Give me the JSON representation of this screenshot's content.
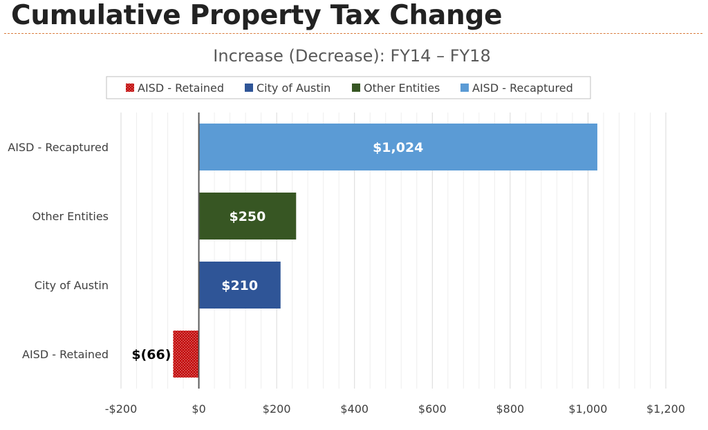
{
  "page": {
    "title": "Cumulative Property Tax Change"
  },
  "chart_data": {
    "type": "bar",
    "orientation": "horizontal",
    "title": "Increase (Decrease): FY14 – FY18",
    "xlabel": "",
    "ylabel": "",
    "categories": [
      "AISD - Recaptured",
      "Other Entities",
      "City of Austin",
      "AISD - Retained"
    ],
    "values": [
      1024,
      250,
      210,
      -66
    ],
    "data_labels": [
      "$1,024",
      "$250",
      "$210",
      "$(66)"
    ],
    "colors": [
      "#5b9bd5",
      "#375623",
      "#2f5597",
      "#c00000"
    ],
    "patterns": [
      "solid",
      "solid",
      "solid",
      "dotted"
    ],
    "legend": {
      "placement": "top",
      "entries": [
        {
          "label": "AISD - Retained",
          "color": "#c00000",
          "pattern": "dotted"
        },
        {
          "label": "City of Austin",
          "color": "#2f5597",
          "pattern": "solid"
        },
        {
          "label": "Other Entities",
          "color": "#375623",
          "pattern": "solid"
        },
        {
          "label": "AISD - Recaptured",
          "color": "#5b9bd5",
          "pattern": "solid"
        }
      ]
    },
    "xlim": [
      -200,
      1200
    ],
    "xticks": [
      -200,
      0,
      200,
      400,
      600,
      800,
      1000,
      1200
    ],
    "xtick_labels": [
      "-$200",
      "$0",
      "$200",
      "$400",
      "$600",
      "$800",
      "$1,000",
      "$1,200"
    ],
    "minor_grid_step": 40,
    "grid": true
  }
}
